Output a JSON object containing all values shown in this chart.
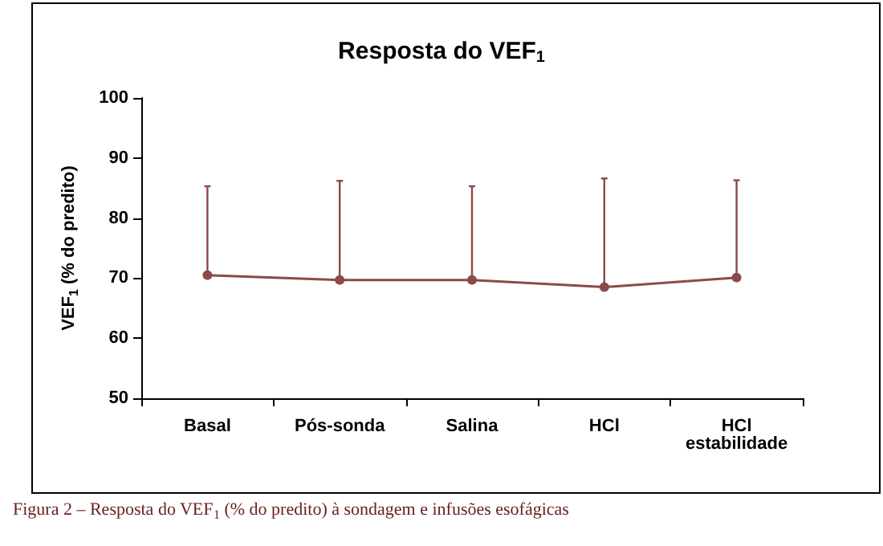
{
  "chart_data": {
    "type": "line",
    "title": "Resposta do VEF$_{1}$",
    "ylabel": "VEF$_{1}$ (% do predito)",
    "annotations": [
      "Figura 2 – Resposta do VEF$_{1}$ (% do predito) à sondagem e infusões esofágicas"
    ],
    "categories": [
      "Basal",
      "Pós-sonda",
      "Salina",
      "HCl",
      "HCl estabilidade"
    ],
    "series": [
      {
        "color": "#8b4a4a",
        "values": [
          70.5,
          69.7,
          69.7,
          68.5,
          70.1
        ],
        "errors": [
          [
            70.5,
            85.3
          ],
          [
            69.7,
            86.2
          ],
          [
            69.7,
            85.3
          ],
          [
            68.5,
            86.6
          ],
          [
            70.1,
            86.3
          ]
        ]
      }
    ],
    "ylim": [
      50,
      100
    ],
    "yticks": [
      50,
      60,
      70,
      80,
      90,
      100
    ],
    "grid": false,
    "marker": "circle",
    "line_style": "solid"
  }
}
